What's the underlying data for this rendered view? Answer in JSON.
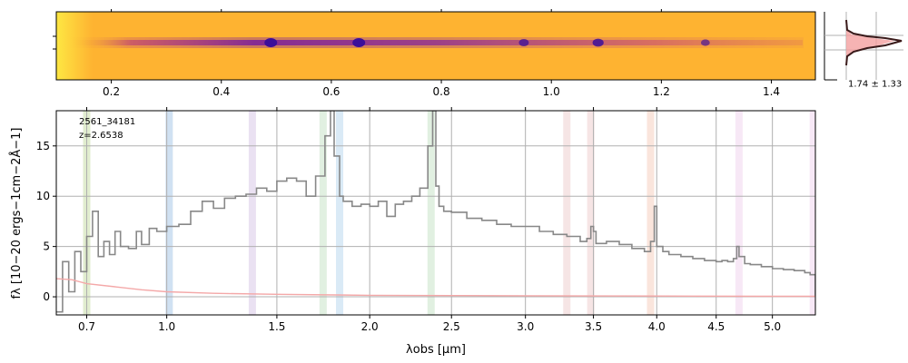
{
  "chart_data": [
    {
      "type": "heatmap",
      "panel": "2d-spectrum",
      "x_ticks": [
        "0.2",
        "0.4",
        "0.6",
        "0.8",
        "1.0",
        "1.2",
        "1.4"
      ],
      "x_tick_values": [
        0.2,
        0.4,
        0.6,
        0.8,
        1.0,
        1.2,
        1.4
      ],
      "xlim": [
        0.1,
        1.48
      ],
      "emission_features": [
        {
          "x": 0.49,
          "strength": 1.0
        },
        {
          "x": 0.65,
          "strength": 1.0
        },
        {
          "x": 0.95,
          "strength": 0.5
        },
        {
          "x": 1.085,
          "strength": 0.7
        },
        {
          "x": 1.28,
          "strength": 0.3
        }
      ],
      "colors": {
        "background": "#feb331",
        "trace": "#3b0f9a",
        "edge": "#fdfd4a"
      }
    },
    {
      "type": "line",
      "panel": "spatial-profile",
      "annotation": "1.74 ± 1.33",
      "colors": {
        "profile": "#3a1a1a",
        "model": "#f4a0a0"
      }
    },
    {
      "type": "line",
      "panel": "1d-spectrum",
      "annotation_lines": [
        "2561_34181",
        "z=2.6538"
      ],
      "xlabel": "λobs [μm]",
      "ylabel": "fλ [10−20 ergs−1cm−2Å−1]",
      "x_ticks": [
        "0.7",
        "1.0",
        "1.5",
        "2.0",
        "2.5",
        "3.0",
        "3.5",
        "4.0",
        "4.5",
        "5.0"
      ],
      "x_tick_values": [
        0.7,
        1.0,
        1.5,
        2.0,
        2.5,
        3.0,
        3.5,
        4.0,
        4.5,
        5.0
      ],
      "y_ticks": [
        "0",
        "5",
        "10",
        "15"
      ],
      "y_tick_values": [
        0,
        5,
        10,
        15
      ],
      "xlim": [
        0.6,
        5.4
      ],
      "ylim": [
        -1.8,
        18.5
      ],
      "grid": true,
      "series": [
        {
          "color": "#888888",
          "x": [
            0.6,
            0.62,
            0.64,
            0.66,
            0.68,
            0.7,
            0.72,
            0.74,
            0.76,
            0.78,
            0.8,
            0.82,
            0.85,
            0.88,
            0.9,
            0.93,
            0.96,
            1.0,
            1.05,
            1.1,
            1.15,
            1.2,
            1.25,
            1.3,
            1.35,
            1.4,
            1.45,
            1.5,
            1.55,
            1.6,
            1.65,
            1.7,
            1.75,
            1.78,
            1.8,
            1.83,
            1.85,
            1.9,
            1.95,
            2.0,
            2.05,
            2.1,
            2.15,
            2.2,
            2.25,
            2.3,
            2.35,
            2.38,
            2.4,
            2.42,
            2.45,
            2.5,
            2.6,
            2.7,
            2.8,
            2.9,
            3.0,
            3.1,
            3.2,
            3.3,
            3.4,
            3.45,
            3.48,
            3.5,
            3.52,
            3.6,
            3.7,
            3.8,
            3.9,
            3.95,
            3.98,
            4.0,
            4.05,
            4.1,
            4.2,
            4.3,
            4.4,
            4.5,
            4.55,
            4.6,
            4.65,
            4.68,
            4.7,
            4.75,
            4.8,
            4.9,
            5.0,
            5.1,
            5.2,
            5.3,
            5.35,
            5.4
          ],
          "values": [
            -1.5,
            3.5,
            0.5,
            4.5,
            2.5,
            6.0,
            8.5,
            4.0,
            5.5,
            4.2,
            6.5,
            5.0,
            4.8,
            6.5,
            5.2,
            6.8,
            6.5,
            7.0,
            7.2,
            8.5,
            9.5,
            8.8,
            9.8,
            10.0,
            10.2,
            10.8,
            10.5,
            11.5,
            11.8,
            11.5,
            10.0,
            12.0,
            16.0,
            18.5,
            14.0,
            10.0,
            9.5,
            9.0,
            9.2,
            9.0,
            9.5,
            8.0,
            9.2,
            9.5,
            10.0,
            10.8,
            15.0,
            18.5,
            11.0,
            9.0,
            8.5,
            8.4,
            7.8,
            7.6,
            7.2,
            7.0,
            7.0,
            6.5,
            6.2,
            6.0,
            5.5,
            5.8,
            7.0,
            6.5,
            5.3,
            5.5,
            5.2,
            4.8,
            4.5,
            5.5,
            9.0,
            5.0,
            4.5,
            4.2,
            4.0,
            3.8,
            3.6,
            3.5,
            3.6,
            3.5,
            3.8,
            5.0,
            4.0,
            3.3,
            3.2,
            3.0,
            2.8,
            2.7,
            2.6,
            2.4,
            2.2,
            0.0
          ]
        },
        {
          "color": "#f4a8a8",
          "x": [
            0.6,
            0.65,
            0.7,
            0.8,
            0.9,
            1.0,
            1.2,
            1.5,
            2.0,
            2.5,
            3.0,
            4.0,
            5.0,
            5.4
          ],
          "values": [
            1.8,
            1.7,
            1.3,
            1.0,
            0.7,
            0.5,
            0.35,
            0.25,
            0.15,
            0.12,
            0.1,
            0.08,
            0.05,
            0.05
          ]
        }
      ],
      "line_bands": [
        {
          "x": 0.7,
          "color": "#c9dfa7"
        },
        {
          "x": 1.01,
          "color": "#a9c8e8"
        },
        {
          "x": 1.38,
          "color": "#d8c8e8"
        },
        {
          "x": 1.74,
          "color": "#c9e4c9"
        },
        {
          "x": 1.83,
          "color": "#bcd8ee"
        },
        {
          "x": 2.37,
          "color": "#c9e4c9"
        },
        {
          "x": 3.3,
          "color": "#eecfcf"
        },
        {
          "x": 3.48,
          "color": "#eecfcf"
        },
        {
          "x": 3.95,
          "color": "#f5d0c0"
        },
        {
          "x": 4.7,
          "color": "#f0d5ee"
        },
        {
          "x": 5.38,
          "color": "#f0d5ee"
        }
      ]
    }
  ]
}
